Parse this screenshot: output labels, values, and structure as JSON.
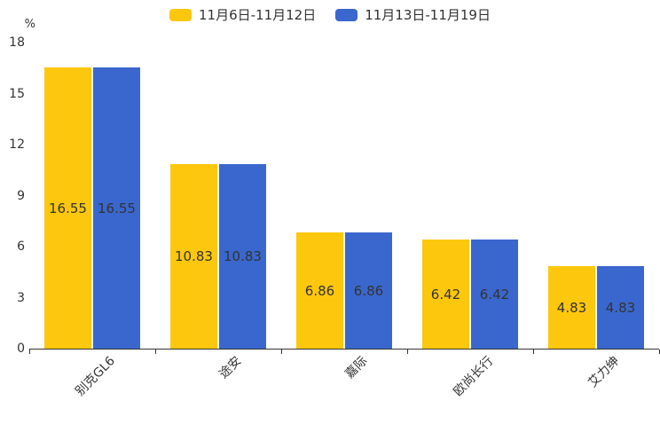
{
  "chart_data": {
    "type": "bar",
    "title": "",
    "unit_label": "%",
    "categories": [
      "别克GL6",
      "途安",
      "嘉际",
      "欧尚长行",
      "艾力绅"
    ],
    "series": [
      {
        "name": "11月6日-11月12日",
        "color": "#FDC70D",
        "values": [
          16.55,
          10.83,
          6.86,
          6.42,
          4.83
        ]
      },
      {
        "name": "11月13日-11月19日",
        "color": "#3A67CD",
        "values": [
          16.55,
          10.83,
          6.86,
          6.42,
          4.83
        ]
      }
    ],
    "ylim": [
      0,
      18
    ],
    "y_ticks": [
      0,
      3,
      6,
      9,
      12,
      15,
      18
    ],
    "legend_position": "top",
    "grid": false,
    "value_label_position": "inside-center",
    "value_label_decimals": 2,
    "colors": {
      "axis": "#333333",
      "text": "#333333",
      "background": "#ffffff"
    }
  }
}
